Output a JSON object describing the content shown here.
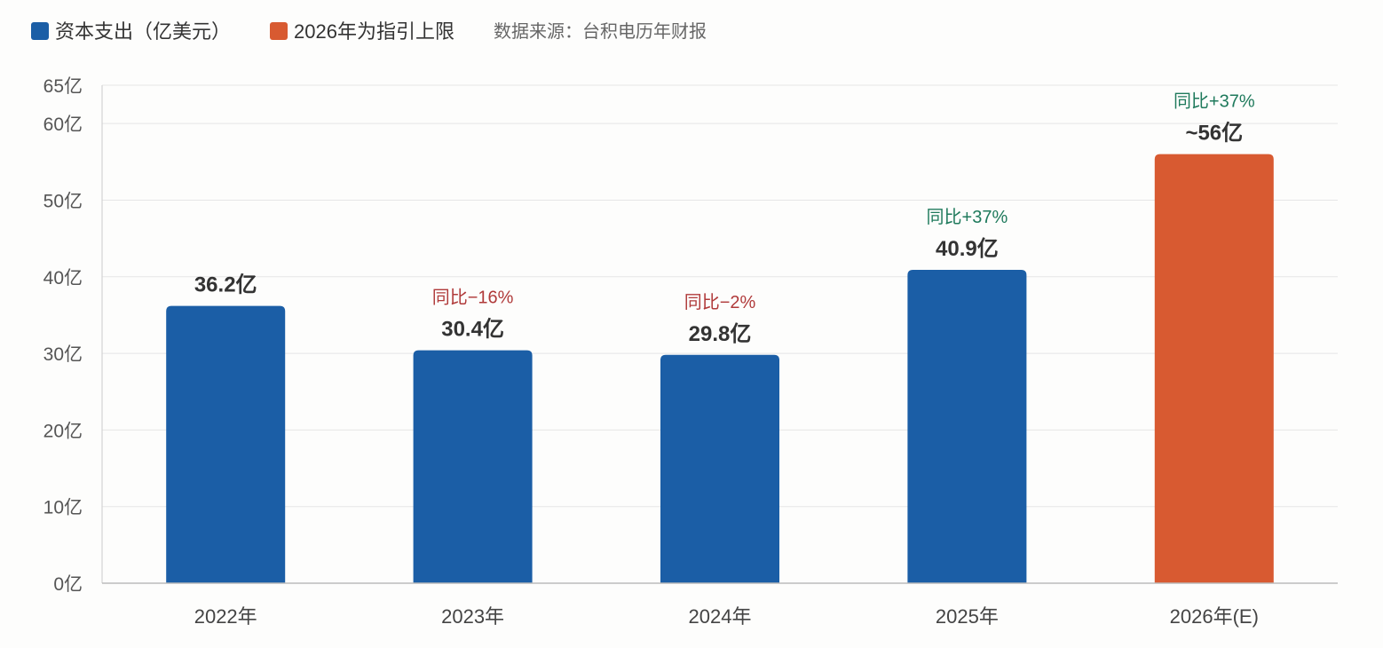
{
  "legend": {
    "items": [
      {
        "label": "资本支出（亿美元）",
        "color": "#1b5ea6"
      },
      {
        "label": "2026年为指引上限",
        "color": "#d85a31"
      }
    ],
    "source": "数据来源：台积电历年财报"
  },
  "chart_data": {
    "type": "bar",
    "categories": [
      "2022年",
      "2023年",
      "2024年",
      "2025年",
      "2026年(E)"
    ],
    "values": [
      36.2,
      30.4,
      29.8,
      40.9,
      56
    ],
    "value_labels": [
      "36.2亿",
      "30.4亿",
      "29.8亿",
      "40.9亿",
      "~56亿"
    ],
    "yoy_labels": [
      "",
      "同比−16%",
      "同比−2%",
      "同比+37%",
      "同比+37%"
    ],
    "bar_colors": [
      "#1b5ea6",
      "#1b5ea6",
      "#1b5ea6",
      "#1b5ea6",
      "#d85a31"
    ],
    "yoy_colors": [
      "",
      "#b03a3a",
      "#b03a3a",
      "#1f7a5c",
      "#1f7a5c"
    ],
    "yticks": [
      0,
      10,
      20,
      30,
      40,
      50,
      60,
      65
    ],
    "ytick_labels": [
      "0亿",
      "10亿",
      "20亿",
      "30亿",
      "40亿",
      "50亿",
      "60亿",
      "65亿"
    ],
    "ylim": [
      0,
      65
    ],
    "grid": true,
    "legend_position": "top-left"
  }
}
